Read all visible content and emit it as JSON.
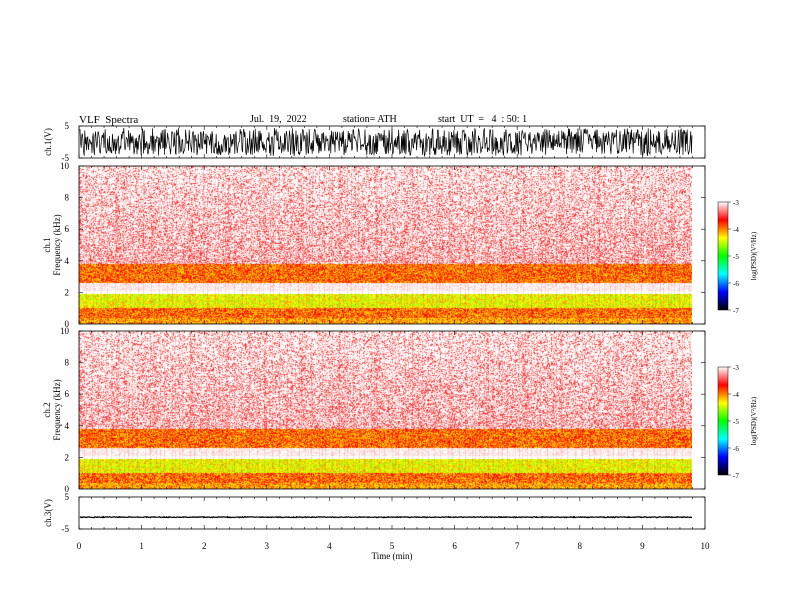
{
  "header": {
    "title": "VLF  Spectra",
    "date": "Jul.  19,  2022",
    "station": "station= ATH",
    "start_ut": "start  UT  =   4  : 50: 1"
  },
  "chart_data": [
    {
      "type": "line",
      "panel": "ch1-waveform",
      "ylabel": "ch.1(V)",
      "ylim": [
        -5,
        5
      ],
      "ytick_labels": [
        "5",
        "-5"
      ],
      "signal": "dense noise waveform filling roughly -4.5 to 4.5 V",
      "line_color": "#000000"
    },
    {
      "type": "heatmap",
      "panel": "ch1-spectrogram",
      "ylabel_lines": [
        "ch.1",
        "Frequency  (kHz)"
      ],
      "ylim": [
        0,
        10
      ],
      "ytick_labels": [
        "0",
        "2",
        "4",
        "6",
        "8",
        "10"
      ],
      "xlim": [
        0,
        10
      ],
      "bands_khz": [
        {
          "from": 0.0,
          "to": 0.4,
          "level": "yellow-red"
        },
        {
          "from": 0.4,
          "to": 1.0,
          "level": "red-yellow"
        },
        {
          "from": 1.0,
          "to": 1.9,
          "level": "yellow-green"
        },
        {
          "from": 1.9,
          "to": 2.1,
          "level": "gap"
        },
        {
          "from": 2.1,
          "to": 2.6,
          "level": "light"
        },
        {
          "from": 2.6,
          "to": 3.8,
          "level": "red-yellow"
        },
        {
          "from": 3.8,
          "to": 10.0,
          "level": "speckled red"
        }
      ],
      "colorbar": {
        "label": "log(PSD)(V²/Hz)",
        "range": [
          -7,
          -3
        ],
        "ticks": [
          "-3",
          "-4",
          "-5",
          "-6",
          "-7"
        ],
        "colors": [
          "#ffffff",
          "#ff0000",
          "#ffff00",
          "#00ff00",
          "#00ffff",
          "#0000ff",
          "#000000"
        ]
      }
    },
    {
      "type": "heatmap",
      "panel": "ch2-spectrogram",
      "ylabel_lines": [
        "ch.2",
        "Frequency  (kHz)"
      ],
      "ylim": [
        0,
        10
      ],
      "ytick_labels": [
        "0",
        "2",
        "4",
        "6",
        "8",
        "10"
      ],
      "xlim": [
        0,
        10
      ],
      "bands_khz": [
        {
          "from": 0.0,
          "to": 0.4,
          "level": "yellow-red"
        },
        {
          "from": 0.4,
          "to": 1.0,
          "level": "red-yellow"
        },
        {
          "from": 1.0,
          "to": 1.9,
          "level": "yellow-green"
        },
        {
          "from": 1.9,
          "to": 2.1,
          "level": "gap"
        },
        {
          "from": 2.1,
          "to": 2.6,
          "level": "light"
        },
        {
          "from": 2.6,
          "to": 3.8,
          "level": "red-yellow"
        },
        {
          "from": 3.8,
          "to": 10.0,
          "level": "speckled red"
        }
      ],
      "colorbar": {
        "label": "log(PSD)(V²/Hz)",
        "range": [
          -7,
          -3
        ],
        "ticks": [
          "-3",
          "-4",
          "-5",
          "-6",
          "-7"
        ],
        "colors": [
          "#ffffff",
          "#ff0000",
          "#ffff00",
          "#00ff00",
          "#00ffff",
          "#0000ff",
          "#000000"
        ]
      }
    },
    {
      "type": "line",
      "panel": "ch3-waveform",
      "ylabel": "ch.3(V)",
      "ylim": [
        -5,
        5
      ],
      "ytick_labels": [
        "5",
        "-5"
      ],
      "signal": "near-flat trace around -1.3 V",
      "line_color": "#000000"
    }
  ],
  "x_axis": {
    "label": "Time  (min)",
    "range": [
      0,
      10
    ],
    "tick_labels": [
      "0",
      "1",
      "2",
      "3",
      "4",
      "5",
      "6",
      "7",
      "8",
      "9",
      "10"
    ],
    "data_end": 9.8
  }
}
